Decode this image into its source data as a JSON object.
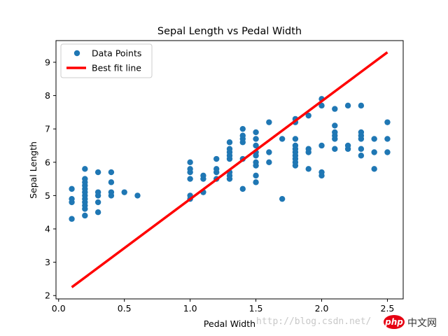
{
  "chart_data": {
    "type": "scatter",
    "title": "Sepal Length vs Pedal Width",
    "xlabel": "Pedal Width",
    "ylabel": "Sepal Length",
    "xlim": [
      -0.02,
      2.62
    ],
    "ylim": [
      1.9,
      9.65
    ],
    "xticks": [
      0.0,
      0.5,
      1.0,
      1.5,
      2.0,
      2.5
    ],
    "xtick_labels": [
      "0.0",
      "0.5",
      "1.0",
      "1.5",
      "2.0",
      "2.5"
    ],
    "yticks": [
      2,
      3,
      4,
      5,
      6,
      7,
      8,
      9
    ],
    "ytick_labels": [
      "2",
      "3",
      "4",
      "5",
      "6",
      "7",
      "8",
      "9"
    ],
    "grid": false,
    "legend_position": "top-left",
    "series": [
      {
        "name": "Data Points",
        "kind": "scatter",
        "color": "#1f77b4",
        "points": [
          [
            0.1,
            4.3
          ],
          [
            0.1,
            4.8
          ],
          [
            0.1,
            4.9
          ],
          [
            0.1,
            5.2
          ],
          [
            0.2,
            4.4
          ],
          [
            0.2,
            4.6
          ],
          [
            0.2,
            4.7
          ],
          [
            0.2,
            4.8
          ],
          [
            0.2,
            4.9
          ],
          [
            0.2,
            5.0
          ],
          [
            0.2,
            5.1
          ],
          [
            0.2,
            5.2
          ],
          [
            0.2,
            5.3
          ],
          [
            0.2,
            5.4
          ],
          [
            0.2,
            5.5
          ],
          [
            0.2,
            5.8
          ],
          [
            0.3,
            4.5
          ],
          [
            0.3,
            4.8
          ],
          [
            0.3,
            5.0
          ],
          [
            0.3,
            5.1
          ],
          [
            0.3,
            5.7
          ],
          [
            0.4,
            5.0
          ],
          [
            0.4,
            5.1
          ],
          [
            0.4,
            5.4
          ],
          [
            0.4,
            5.7
          ],
          [
            0.5,
            5.1
          ],
          [
            0.6,
            5.0
          ],
          [
            1.0,
            4.9
          ],
          [
            1.0,
            5.0
          ],
          [
            1.0,
            5.5
          ],
          [
            1.0,
            5.7
          ],
          [
            1.0,
            5.8
          ],
          [
            1.0,
            6.0
          ],
          [
            1.1,
            5.1
          ],
          [
            1.1,
            5.5
          ],
          [
            1.1,
            5.6
          ],
          [
            1.2,
            5.5
          ],
          [
            1.2,
            5.7
          ],
          [
            1.2,
            5.8
          ],
          [
            1.2,
            6.1
          ],
          [
            1.3,
            5.5
          ],
          [
            1.3,
            5.6
          ],
          [
            1.3,
            5.7
          ],
          [
            1.3,
            6.1
          ],
          [
            1.3,
            6.2
          ],
          [
            1.3,
            6.3
          ],
          [
            1.3,
            6.4
          ],
          [
            1.3,
            6.6
          ],
          [
            1.4,
            5.2
          ],
          [
            1.4,
            6.1
          ],
          [
            1.4,
            6.6
          ],
          [
            1.4,
            6.7
          ],
          [
            1.4,
            6.8
          ],
          [
            1.4,
            7.0
          ],
          [
            1.5,
            5.4
          ],
          [
            1.5,
            5.6
          ],
          [
            1.5,
            5.9
          ],
          [
            1.5,
            6.0
          ],
          [
            1.5,
            6.2
          ],
          [
            1.5,
            6.3
          ],
          [
            1.5,
            6.5
          ],
          [
            1.5,
            6.7
          ],
          [
            1.5,
            6.9
          ],
          [
            1.6,
            6.0
          ],
          [
            1.6,
            6.3
          ],
          [
            1.6,
            7.2
          ],
          [
            1.7,
            4.9
          ],
          [
            1.7,
            6.7
          ],
          [
            1.8,
            5.9
          ],
          [
            1.8,
            6.0
          ],
          [
            1.8,
            6.1
          ],
          [
            1.8,
            6.2
          ],
          [
            1.8,
            6.3
          ],
          [
            1.8,
            6.4
          ],
          [
            1.8,
            6.5
          ],
          [
            1.8,
            6.7
          ],
          [
            1.8,
            7.2
          ],
          [
            1.8,
            7.3
          ],
          [
            1.9,
            5.8
          ],
          [
            1.9,
            6.3
          ],
          [
            1.9,
            6.4
          ],
          [
            1.9,
            7.4
          ],
          [
            2.0,
            5.6
          ],
          [
            2.0,
            5.7
          ],
          [
            2.0,
            6.5
          ],
          [
            2.0,
            7.7
          ],
          [
            2.0,
            7.9
          ],
          [
            2.1,
            6.4
          ],
          [
            2.1,
            6.7
          ],
          [
            2.1,
            6.8
          ],
          [
            2.1,
            6.9
          ],
          [
            2.1,
            7.1
          ],
          [
            2.1,
            7.6
          ],
          [
            2.2,
            6.4
          ],
          [
            2.2,
            6.5
          ],
          [
            2.2,
            7.7
          ],
          [
            2.3,
            6.2
          ],
          [
            2.3,
            6.4
          ],
          [
            2.3,
            6.7
          ],
          [
            2.3,
            6.8
          ],
          [
            2.3,
            6.9
          ],
          [
            2.3,
            7.7
          ],
          [
            2.4,
            5.8
          ],
          [
            2.4,
            6.3
          ],
          [
            2.4,
            6.7
          ],
          [
            2.5,
            6.3
          ],
          [
            2.5,
            6.7
          ],
          [
            2.5,
            7.2
          ]
        ]
      },
      {
        "name": "Best fit line",
        "kind": "line",
        "color": "#ff0000",
        "points": [
          [
            0.1,
            2.25
          ],
          [
            2.5,
            9.3
          ]
        ]
      }
    ]
  },
  "watermark": {
    "url_text": "http://blog.csdn.net/",
    "logo_text": "php",
    "cn_text": "中文网"
  }
}
